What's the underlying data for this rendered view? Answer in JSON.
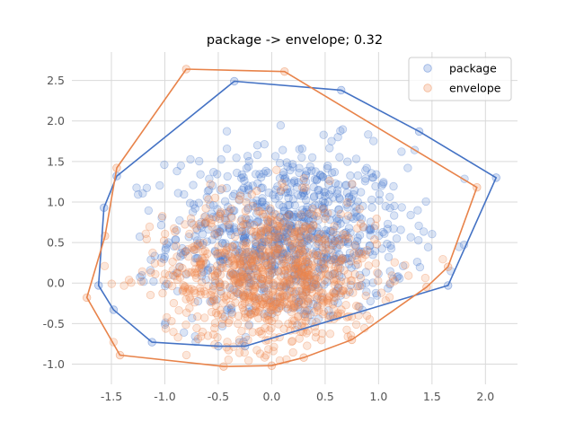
{
  "chart_data": {
    "type": "scatter",
    "title": "package -> envelope; 0.32",
    "xlabel": "",
    "ylabel": "",
    "xlim": [
      -1.87,
      2.3
    ],
    "ylim": [
      -1.25,
      2.85
    ],
    "x_ticks": [
      "-1.5",
      "-1.0",
      "-0.5",
      "0.0",
      "0.5",
      "1.0",
      "1.5",
      "2.0"
    ],
    "y_ticks": [
      "-1.0",
      "-0.5",
      "0.0",
      "0.5",
      "1.0",
      "1.5",
      "2.0",
      "2.5"
    ],
    "grid": true,
    "legend_position": "top-right",
    "series": [
      {
        "name": "package",
        "color": "#4878cf",
        "marker": "circle",
        "point_count": 900,
        "center": [
          0.15,
          0.55
        ],
        "spread": [
          0.55,
          0.55
        ],
        "hull": [
          [
            2.1,
            1.3
          ],
          [
            1.65,
            -0.03
          ],
          [
            -0.25,
            -0.78
          ],
          [
            -0.5,
            -0.78
          ],
          [
            -1.12,
            -0.73
          ],
          [
            -1.48,
            -0.33
          ],
          [
            -1.62,
            -0.03
          ],
          [
            -1.57,
            0.93
          ],
          [
            -1.45,
            1.32
          ],
          [
            -0.35,
            2.49
          ],
          [
            0.65,
            2.38
          ],
          [
            1.38,
            1.87
          ]
        ]
      },
      {
        "name": "envelope",
        "color": "#ee854a",
        "marker": "circle",
        "point_count": 900,
        "center": [
          0.0,
          0.1
        ],
        "spread": [
          0.5,
          0.45
        ],
        "hull": [
          [
            1.92,
            1.18
          ],
          [
            1.65,
            0.2
          ],
          [
            1.45,
            -0.05
          ],
          [
            0.75,
            -0.7
          ],
          [
            0.3,
            -0.92
          ],
          [
            0.0,
            -1.02
          ],
          [
            -0.45,
            -1.03
          ],
          [
            -1.42,
            -0.89
          ],
          [
            -1.73,
            -0.18
          ],
          [
            -1.56,
            0.58
          ],
          [
            -1.45,
            1.42
          ],
          [
            -0.8,
            2.64
          ],
          [
            0.12,
            2.61
          ]
        ]
      }
    ]
  }
}
